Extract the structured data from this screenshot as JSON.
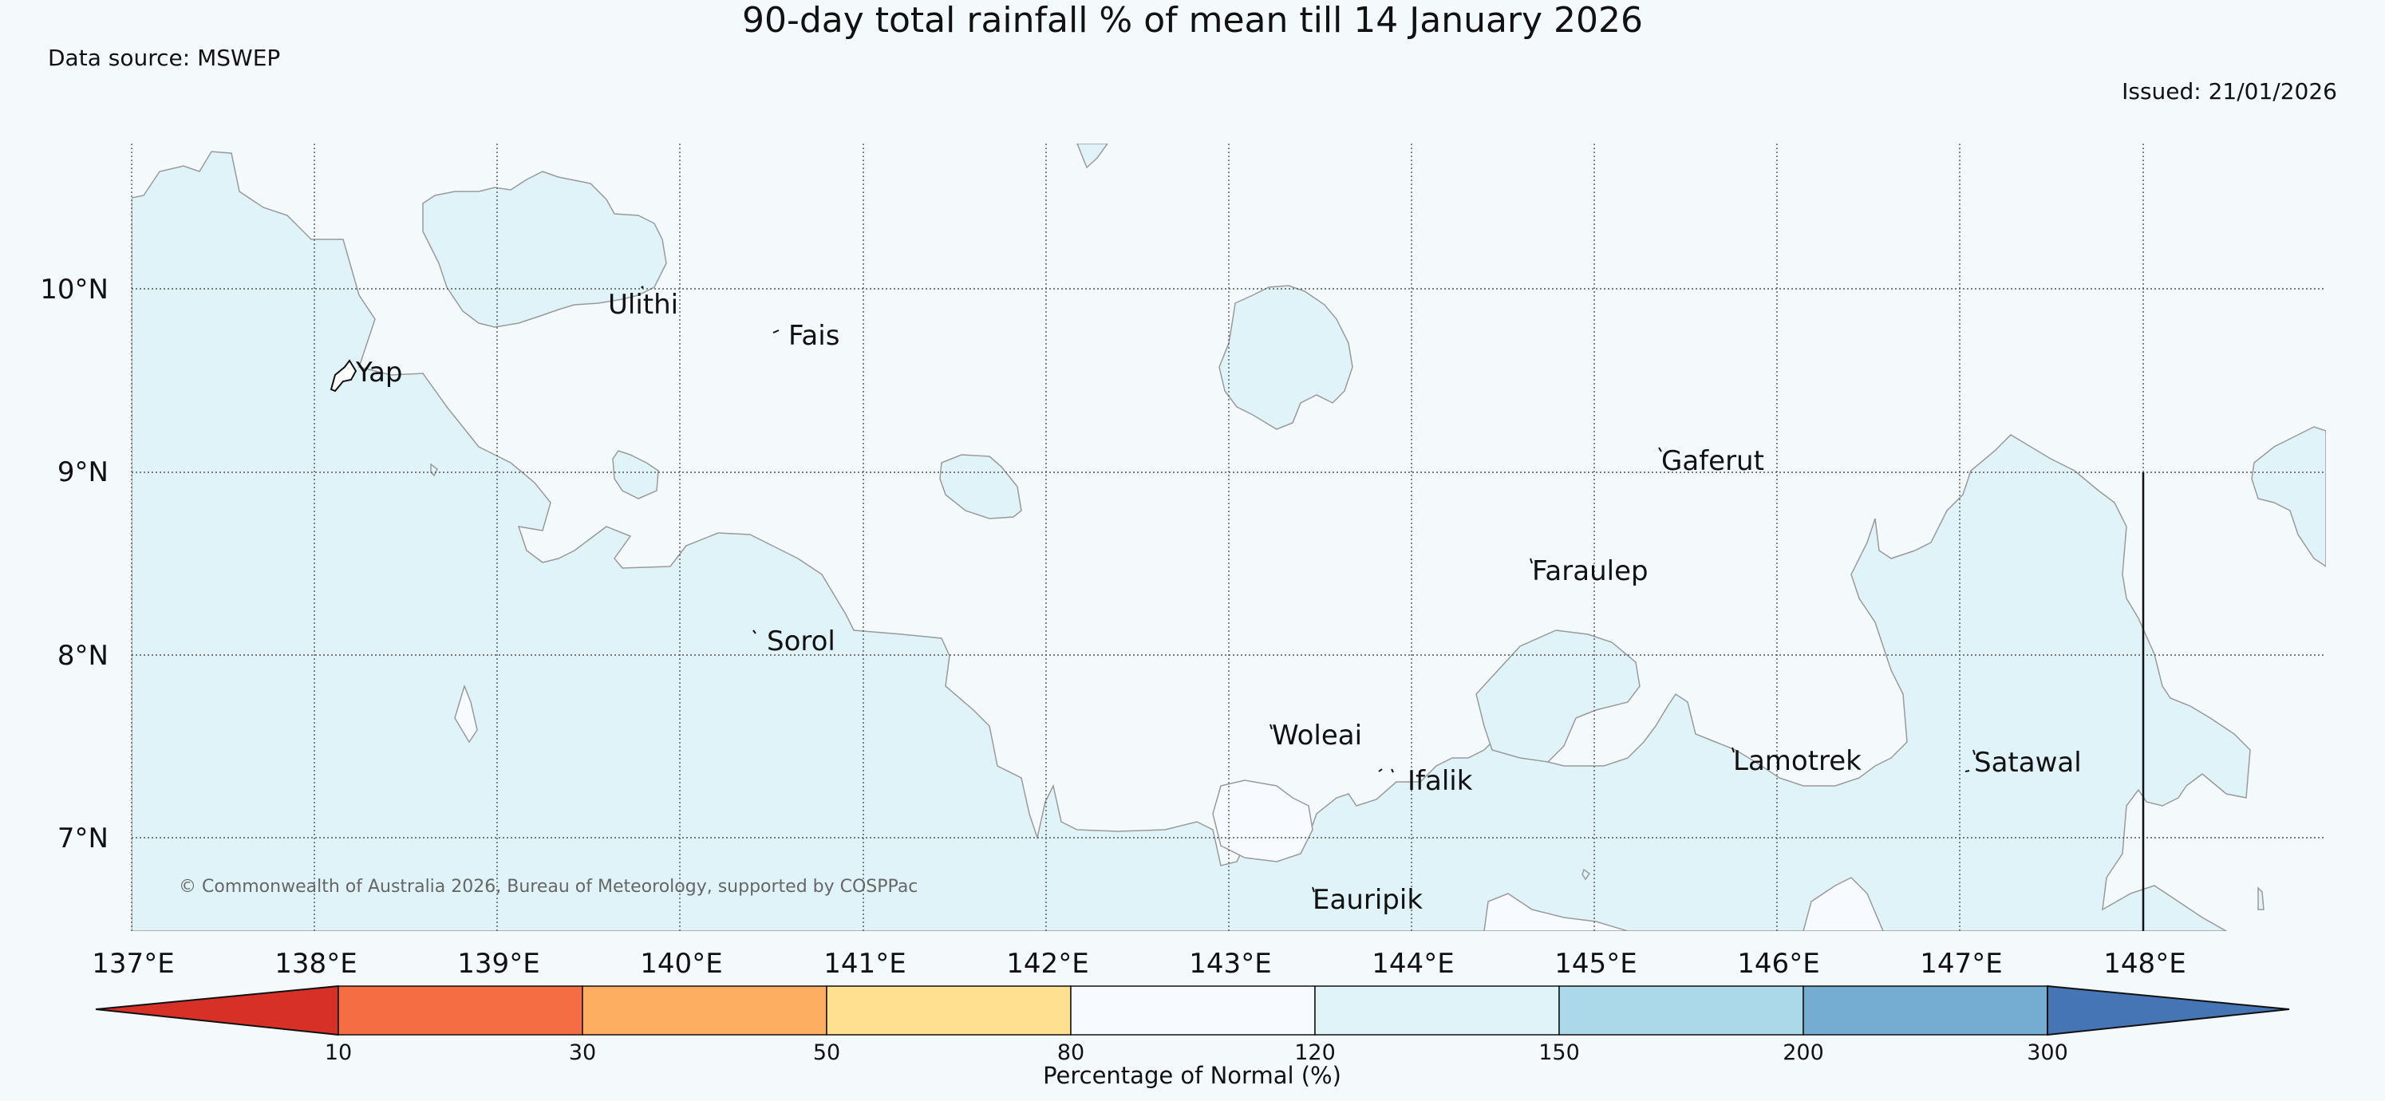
{
  "header": {
    "title": "90-day total rainfall % of mean till 14 January 2026",
    "source": "Data source: MSWEP",
    "issued": "Issued: 21/01/2026"
  },
  "map": {
    "latitude_labels": [
      "10°N",
      "9°N",
      "8°N",
      "7°N"
    ],
    "longitude_labels": [
      "137°E",
      "138°E",
      "139°E",
      "140°E",
      "141°E",
      "142°E",
      "143°E",
      "144°E",
      "145°E",
      "146°E",
      "147°E",
      "148°E"
    ],
    "islands": {
      "yap": "Yap",
      "ulithi": "Ulithi",
      "fais": "Fais",
      "sorol": "Sorol",
      "gaferut": "Gaferut",
      "faraulep": "Faraulep",
      "woleai": "Woleai",
      "ifalik": "Ifalik",
      "eauripik": "Eauripik",
      "lamotrek": "Lamotrek",
      "satawal": "Satawal"
    },
    "copyright": "© Commonwealth of Australia 2026, Bureau of Meteorology, supported by COSPPac",
    "colors": {
      "background": "#f4f9fc",
      "above_normal": "#e0f3f8"
    }
  },
  "legend": {
    "title": "Percentage of Normal (%)",
    "ticks": [
      "10",
      "30",
      "50",
      "80",
      "120",
      "150",
      "200",
      "300"
    ],
    "colors": [
      "#d73027",
      "#f46d43",
      "#fdae61",
      "#fee090",
      "#f7fbff",
      "#e0f3f8",
      "#abd9e9",
      "#74add1",
      "#4575b4"
    ]
  }
}
